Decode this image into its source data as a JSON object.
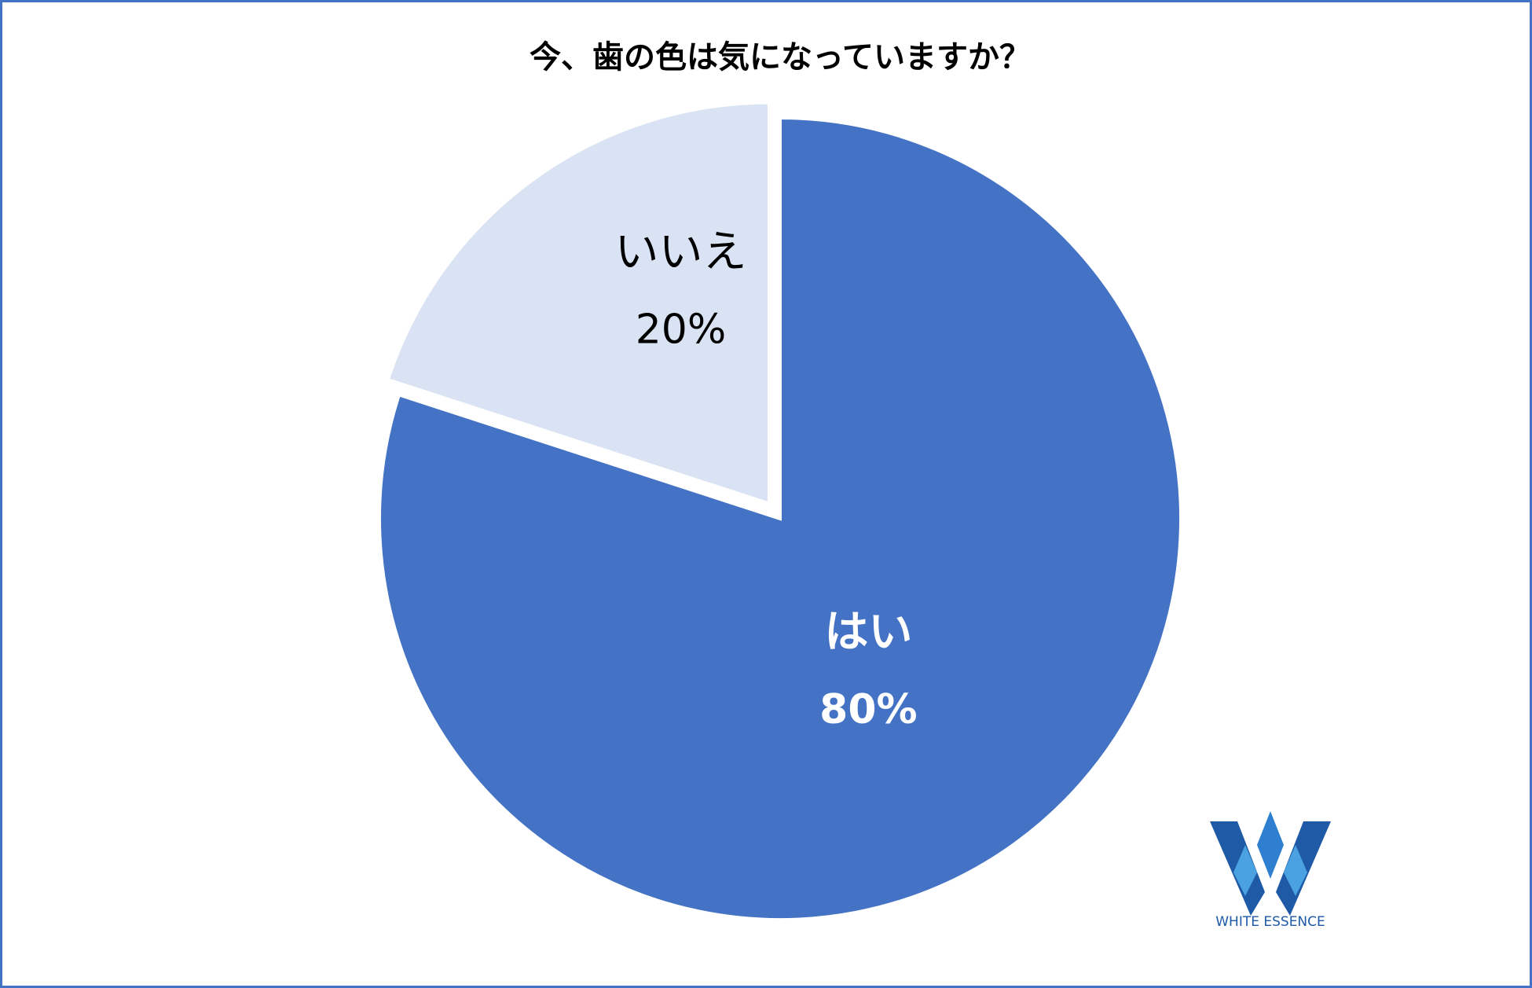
{
  "chart_data": {
    "type": "pie",
    "title": "今、歯の色は気になっていますか？",
    "categories": [
      "はい",
      "いいえ"
    ],
    "values": [
      80,
      20
    ],
    "value_labels": [
      "80%",
      "20%"
    ],
    "colors": [
      "#4472c4",
      "#dae3f3"
    ],
    "label_colors": [
      "#ffffff",
      "#000000"
    ],
    "explode": [
      false,
      true
    ]
  },
  "logo": {
    "text": "WHITE ESSENCE"
  }
}
